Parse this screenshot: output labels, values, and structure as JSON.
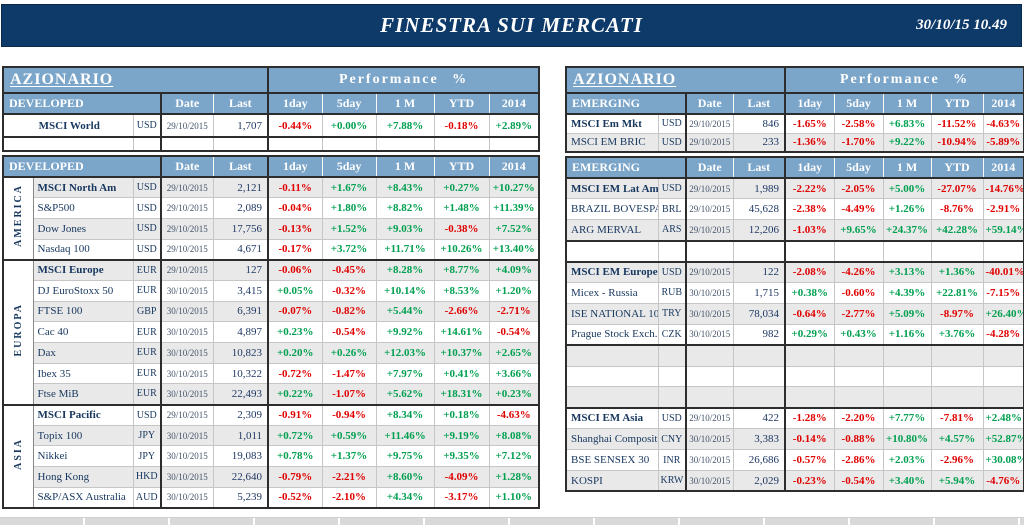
{
  "header": {
    "title": "FINESTRA SUI MERCATI",
    "datetime": "30/10/15 10.49"
  },
  "labels": {
    "section": "AZIONARIO",
    "performance": "Performance %",
    "date": "Date",
    "last": "Last",
    "perf_cols": [
      "1day",
      "5day",
      "1 M",
      "YTD",
      "2014"
    ]
  },
  "colors": {
    "header_bar": "#0e3a69",
    "table_header_blue": "#7ba5c9",
    "positive_green": "#00a050",
    "negative_red": "#e00000",
    "stripe_gray": "#e9e9e9",
    "text_navy": "#17375e"
  },
  "left": {
    "group_label": "DEVELOPED",
    "summary_rows": [
      {
        "name": "MSCI World",
        "bold": true,
        "curr": "USD",
        "date": "29/10/2015",
        "last": "1,707",
        "perf": [
          "-0.44%",
          "+0.00%",
          "+7.88%",
          "-0.18%",
          "+2.89%"
        ]
      },
      {
        "name": "",
        "bold": false,
        "curr": "",
        "date": "",
        "last": "",
        "perf": [
          "",
          "",
          "",
          "",
          ""
        ]
      }
    ],
    "groups": [
      {
        "region": "AMERICA",
        "rows": [
          {
            "name": "MSCI North Am",
            "bold": true,
            "curr": "USD",
            "date": "29/10/2015",
            "last": "2,121",
            "perf": [
              "-0.11%",
              "+1.67%",
              "+8.43%",
              "+0.27%",
              "+10.27%"
            ]
          },
          {
            "name": "S&P500",
            "bold": false,
            "curr": "USD",
            "date": "29/10/2015",
            "last": "2,089",
            "perf": [
              "-0.04%",
              "+1.80%",
              "+8.82%",
              "+1.48%",
              "+11.39%"
            ]
          },
          {
            "name": "Dow Jones",
            "bold": false,
            "curr": "USD",
            "date": "29/10/2015",
            "last": "17,756",
            "perf": [
              "-0.13%",
              "+1.52%",
              "+9.03%",
              "-0.38%",
              "+7.52%"
            ]
          },
          {
            "name": "Nasdaq 100",
            "bold": false,
            "curr": "USD",
            "date": "29/10/2015",
            "last": "4,671",
            "perf": [
              "-0.17%",
              "+3.72%",
              "+11.71%",
              "+10.26%",
              "+13.40%"
            ]
          }
        ]
      },
      {
        "region": "EUROPA",
        "rows": [
          {
            "name": "MSCI Europe",
            "bold": true,
            "curr": "EUR",
            "date": "29/10/2015",
            "last": "127",
            "perf": [
              "-0.06%",
              "-0.45%",
              "+8.28%",
              "+8.77%",
              "+4.09%"
            ]
          },
          {
            "name": "DJ EuroStoxx 50",
            "bold": false,
            "curr": "EUR",
            "date": "30/10/2015",
            "last": "3,415",
            "perf": [
              "+0.05%",
              "-0.32%",
              "+10.14%",
              "+8.53%",
              "+1.20%"
            ]
          },
          {
            "name": "FTSE 100",
            "bold": false,
            "curr": "GBP",
            "date": "30/10/2015",
            "last": "6,391",
            "perf": [
              "-0.07%",
              "-0.82%",
              "+5.44%",
              "-2.66%",
              "-2.71%"
            ]
          },
          {
            "name": "Cac 40",
            "bold": false,
            "curr": "EUR",
            "date": "30/10/2015",
            "last": "4,897",
            "perf": [
              "+0.23%",
              "-0.54%",
              "+9.92%",
              "+14.61%",
              "-0.54%"
            ]
          },
          {
            "name": "Dax",
            "bold": false,
            "curr": "EUR",
            "date": "30/10/2015",
            "last": "10,823",
            "perf": [
              "+0.20%",
              "+0.26%",
              "+12.03%",
              "+10.37%",
              "+2.65%"
            ]
          },
          {
            "name": "Ibex 35",
            "bold": false,
            "curr": "EUR",
            "date": "30/10/2015",
            "last": "10,322",
            "perf": [
              "-0.72%",
              "-1.47%",
              "+7.97%",
              "+0.41%",
              "+3.66%"
            ]
          },
          {
            "name": "Ftse MiB",
            "bold": false,
            "curr": "EUR",
            "date": "30/10/2015",
            "last": "22,493",
            "perf": [
              "+0.22%",
              "-1.07%",
              "+5.62%",
              "+18.31%",
              "+0.23%"
            ]
          }
        ]
      },
      {
        "region": "ASIA",
        "rows": [
          {
            "name": "MSCI Pacific",
            "bold": true,
            "curr": "USD",
            "date": "29/10/2015",
            "last": "2,309",
            "perf": [
              "-0.91%",
              "-0.94%",
              "+8.34%",
              "+0.18%",
              "-4.63%"
            ]
          },
          {
            "name": "Topix 100",
            "bold": false,
            "curr": "JPY",
            "date": "30/10/2015",
            "last": "1,011",
            "perf": [
              "+0.72%",
              "+0.59%",
              "+11.46%",
              "+9.19%",
              "+8.08%"
            ]
          },
          {
            "name": "Nikkei",
            "bold": false,
            "curr": "JPY",
            "date": "30/10/2015",
            "last": "19,083",
            "perf": [
              "+0.78%",
              "+1.37%",
              "+9.75%",
              "+9.35%",
              "+7.12%"
            ]
          },
          {
            "name": "Hong Kong",
            "bold": false,
            "curr": "HKD",
            "date": "30/10/2015",
            "last": "22,640",
            "perf": [
              "-0.79%",
              "-2.21%",
              "+8.60%",
              "-4.09%",
              "+1.28%"
            ]
          },
          {
            "name": "S&P/ASX Australia",
            "bold": false,
            "curr": "AUD",
            "date": "30/10/2015",
            "last": "5,239",
            "perf": [
              "-0.52%",
              "-2.10%",
              "+4.34%",
              "-3.17%",
              "+1.10%"
            ]
          }
        ]
      }
    ]
  },
  "right": {
    "group_label": "EMERGING",
    "summary_rows": [
      {
        "name": "MSCI Em Mkt",
        "bold": true,
        "curr": "USD",
        "date": "29/10/2015",
        "last": "846",
        "perf": [
          "-1.65%",
          "-2.58%",
          "+6.83%",
          "-11.52%",
          "-4.63%"
        ]
      },
      {
        "name": "MSCI EM BRIC",
        "bold": false,
        "curr": "USD",
        "date": "29/10/2015",
        "last": "233",
        "perf": [
          "-1.36%",
          "-1.70%",
          "+9.22%",
          "-10.94%",
          "-5.89%"
        ]
      }
    ],
    "groups": [
      {
        "region": null,
        "rows": [
          {
            "name": "MSCI EM Lat Am",
            "bold": true,
            "curr": "USD",
            "date": "29/10/2015",
            "last": "1,989",
            "perf": [
              "-2.22%",
              "-2.05%",
              "+5.00%",
              "-27.07%",
              "-14.76%"
            ]
          },
          {
            "name": "BRAZIL BOVESPA",
            "bold": false,
            "curr": "BRL",
            "date": "29/10/2015",
            "last": "45,628",
            "perf": [
              "-2.38%",
              "-4.49%",
              "+1.26%",
              "-8.76%",
              "-2.91%"
            ]
          },
          {
            "name": "ARG MERVAL",
            "bold": false,
            "curr": "ARS",
            "date": "29/10/2015",
            "last": "12,206",
            "perf": [
              "-1.03%",
              "+9.65%",
              "+24.37%",
              "+42.28%",
              "+59.14%"
            ]
          },
          {
            "name": "",
            "bold": false,
            "curr": "",
            "date": "",
            "last": "",
            "perf": [
              "",
              "",
              "",
              "",
              ""
            ]
          }
        ]
      },
      {
        "region": null,
        "rows": [
          {
            "name": "MSCI EM Europe",
            "bold": true,
            "curr": "USD",
            "date": "29/10/2015",
            "last": "122",
            "perf": [
              "-2.08%",
              "-4.26%",
              "+3.13%",
              "+1.36%",
              "-40.01%"
            ]
          },
          {
            "name": "Micex - Russia",
            "bold": false,
            "curr": "RUB",
            "date": "30/10/2015",
            "last": "1,715",
            "perf": [
              "+0.38%",
              "-0.60%",
              "+4.39%",
              "+22.81%",
              "-7.15%"
            ]
          },
          {
            "name": "ISE NATIONAL 10",
            "bold": false,
            "curr": "TRY",
            "date": "30/10/2015",
            "last": "78,034",
            "perf": [
              "-0.64%",
              "-2.77%",
              "+5.09%",
              "-8.97%",
              "+26.40%"
            ]
          },
          {
            "name": "Prague Stock Exch.",
            "bold": false,
            "curr": "CZK",
            "date": "30/10/2015",
            "last": "982",
            "perf": [
              "+0.29%",
              "+0.43%",
              "+1.16%",
              "+3.76%",
              "-4.28%"
            ]
          },
          {
            "name": "",
            "bold": false,
            "curr": "",
            "date": "",
            "last": "",
            "perf": [
              "",
              "",
              "",
              "",
              ""
            ]
          },
          {
            "name": "",
            "bold": false,
            "curr": "",
            "date": "",
            "last": "",
            "perf": [
              "",
              "",
              "",
              "",
              ""
            ]
          },
          {
            "name": "",
            "bold": false,
            "curr": "",
            "date": "",
            "last": "",
            "perf": [
              "",
              "",
              "",
              "",
              ""
            ]
          }
        ]
      },
      {
        "region": null,
        "rows": [
          {
            "name": "MSCI EM Asia",
            "bold": true,
            "curr": "USD",
            "date": "29/10/2015",
            "last": "422",
            "perf": [
              "-1.28%",
              "-2.20%",
              "+7.77%",
              "-7.81%",
              "+2.48%"
            ]
          },
          {
            "name": "Shanghai Composite",
            "bold": false,
            "curr": "CNY",
            "date": "30/10/2015",
            "last": "3,383",
            "perf": [
              "-0.14%",
              "-0.88%",
              "+10.80%",
              "+4.57%",
              "+52.87%"
            ]
          },
          {
            "name": "BSE SENSEX 30",
            "bold": false,
            "curr": "INR",
            "date": "30/10/2015",
            "last": "26,686",
            "perf": [
              "-0.57%",
              "-2.86%",
              "+2.03%",
              "-2.96%",
              "+30.08%"
            ]
          },
          {
            "name": "KOSPI",
            "bold": false,
            "curr": "KRW",
            "date": "30/10/2015",
            "last": "2,029",
            "perf": [
              "-0.23%",
              "-0.54%",
              "+3.40%",
              "+5.94%",
              "-4.76%"
            ]
          }
        ]
      }
    ]
  }
}
